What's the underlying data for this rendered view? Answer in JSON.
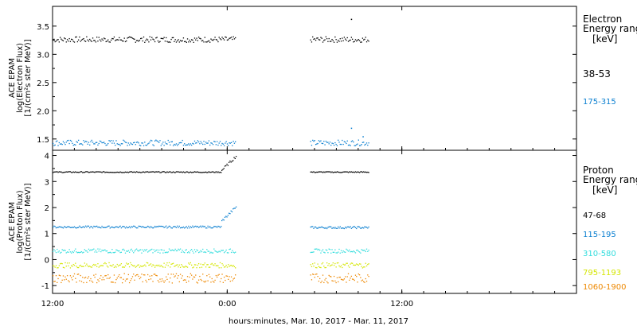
{
  "chart_data": [
    {
      "type": "scatter",
      "panel": "electron",
      "ylabel_lines": [
        "ACE EPAM",
        "log(Electron Flux)",
        "[1/(cm²s ster MeV)]"
      ],
      "yticks": [
        "1.5",
        "2.0",
        "2.5",
        "3.0",
        "3.5"
      ],
      "ytick_values": [
        1.5,
        2.0,
        2.5,
        3.0,
        3.5
      ],
      "ylim": [
        1.3,
        3.85
      ],
      "legend_title": [
        "Electron",
        "Energy range",
        "[keV]"
      ],
      "series": [
        {
          "name": "38-53",
          "color": "#000000",
          "segments": [
            {
              "x_start": 0,
              "x_end": 12.6,
              "mean": 3.27,
              "noise": 0.05
            },
            {
              "x_start": 17.7,
              "x_end": 21.7,
              "mean": 3.27,
              "noise": 0.05
            }
          ],
          "extra_points": [
            [
              20.5,
              3.63
            ]
          ]
        },
        {
          "name": "175-315",
          "color": "#0a7fd0",
          "segments": [
            {
              "x_start": 0,
              "x_end": 12.6,
              "mean": 1.44,
              "noise": 0.05
            },
            {
              "x_start": 17.7,
              "x_end": 21.7,
              "mean": 1.44,
              "noise": 0.05
            }
          ],
          "extra_points": [
            [
              20.5,
              1.7
            ],
            [
              21.3,
              1.55
            ]
          ]
        }
      ]
    },
    {
      "type": "scatter",
      "panel": "proton",
      "ylabel_lines": [
        "ACE EPAM",
        "log(Proton Flux)",
        "[1/(cm²s ster MeV)]"
      ],
      "yticks": [
        "-1",
        "0",
        "1",
        "2",
        "3",
        "4"
      ],
      "ytick_values": [
        -1,
        0,
        1,
        2,
        3,
        4
      ],
      "ylim": [
        -1.3,
        4.2
      ],
      "legend_title": [
        "Proton",
        "Energy range",
        "[keV]"
      ],
      "series": [
        {
          "name": "47-68",
          "color": "#000000",
          "segments": [
            {
              "x_start": 0,
              "x_end": 11.6,
              "mean": 3.38,
              "noise": 0.02
            },
            {
              "x_start": 17.7,
              "x_end": 21.7,
              "mean": 3.38,
              "noise": 0.02
            }
          ],
          "rise": {
            "x_start": 11.6,
            "x_end": 12.6,
            "from": 3.45,
            "to": 4.0
          }
        },
        {
          "name": "115-195",
          "color": "#0a7fd0",
          "segments": [
            {
              "x_start": 0,
              "x_end": 11.6,
              "mean": 1.27,
              "noise": 0.04
            },
            {
              "x_start": 17.7,
              "x_end": 21.7,
              "mean": 1.25,
              "noise": 0.04
            }
          ],
          "rise": {
            "x_start": 11.6,
            "x_end": 12.6,
            "from": 1.5,
            "to": 2.05
          }
        },
        {
          "name": "310-580",
          "color": "#33dddd",
          "segments": [
            {
              "x_start": 0,
              "x_end": 12.6,
              "mean": 0.35,
              "noise": 0.08
            },
            {
              "x_start": 17.7,
              "x_end": 21.7,
              "mean": 0.35,
              "noise": 0.08
            }
          ]
        },
        {
          "name": "795-1193",
          "color": "#d4e600",
          "segments": [
            {
              "x_start": 0,
              "x_end": 12.6,
              "mean": -0.2,
              "noise": 0.1
            },
            {
              "x_start": 17.7,
              "x_end": 21.7,
              "mean": -0.2,
              "noise": 0.1
            }
          ]
        },
        {
          "name": "1060-1900",
          "color": "#ee8800",
          "segments": [
            {
              "x_start": 0,
              "x_end": 12.6,
              "mean": -0.7,
              "noise": 0.18
            },
            {
              "x_start": 17.7,
              "x_end": 21.7,
              "mean": -0.7,
              "noise": 0.18
            }
          ]
        }
      ]
    }
  ],
  "x_axis": {
    "xlim": [
      0,
      36
    ],
    "ticks": [
      {
        "value": 0,
        "label": "12:00"
      },
      {
        "value": 12,
        "label": "0:00"
      },
      {
        "value": 24,
        "label": "12:00"
      }
    ],
    "minor_step": 1.5,
    "xlabel": "hours:minutes, Mar. 10, 2017 - Mar. 11, 2017"
  }
}
